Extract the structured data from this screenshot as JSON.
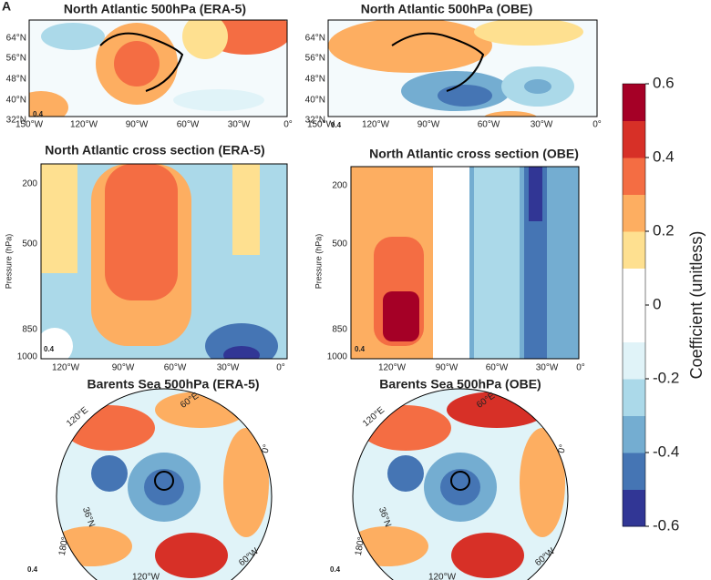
{
  "panel_letter": "A",
  "panels": [
    {
      "title": "North Atlantic 500hPa (ERA-5)",
      "x_labels": [
        "150°W",
        "120°W",
        "90°W",
        "60°W",
        "30°W",
        "0°"
      ],
      "y_labels": [
        "64°N",
        "56°N",
        "48°N",
        "40°N",
        "32°N"
      ],
      "scale": "0.4"
    },
    {
      "title": "North Atlantic 500hPa (OBE)",
      "x_labels": [
        "150°W",
        "120°W",
        "90°W",
        "60°W",
        "30°W",
        "0°"
      ],
      "y_labels": [
        "64°N",
        "56°N",
        "48°N",
        "40°N",
        "32°N"
      ],
      "scale": "0.4"
    },
    {
      "title": "North Atlantic cross section (ERA-5)",
      "y_label": "Pressure (hPa)",
      "x_labels": [
        "120°W",
        "90°W",
        "60°W",
        "30°W",
        "0°"
      ],
      "y_labels": [
        "200",
        "500",
        "850",
        "1000"
      ],
      "scale": "0.4"
    },
    {
      "title": "North Atlantic cross section (OBE)",
      "y_label": "Pressure (hPa)",
      "x_labels": [
        "120°W",
        "90°W",
        "60°W",
        "30°W",
        "0°"
      ],
      "y_labels": [
        "200",
        "500",
        "850",
        "1000"
      ],
      "scale": "0.4"
    },
    {
      "title": "Barents Sea 500hPa (ERA-5)",
      "labels": [
        "60°E",
        "120°E",
        "0°",
        "180°",
        "36°N",
        "60°W",
        "120°W"
      ],
      "scale": "0.4"
    },
    {
      "title": "Barents Sea 500hPa (OBE)",
      "labels": [
        "60°E",
        "120°E",
        "0°",
        "180°",
        "36°N",
        "60°W",
        "120°W"
      ],
      "scale": "0.4"
    }
  ],
  "colorbar": {
    "label": "Coefficient (unitless)",
    "lim": [
      -0.6,
      0.6
    ],
    "ticks": [
      0.6,
      0.4,
      0.2,
      0,
      -0.2,
      -0.4,
      -0.6
    ],
    "colors": [
      "#313695",
      "#4575b4",
      "#74add1",
      "#abd9e9",
      "#e0f3f8",
      "#ffffff",
      "#ffffff",
      "#fee090",
      "#fdae61",
      "#f46d43",
      "#d73027",
      "#a50026"
    ]
  }
}
